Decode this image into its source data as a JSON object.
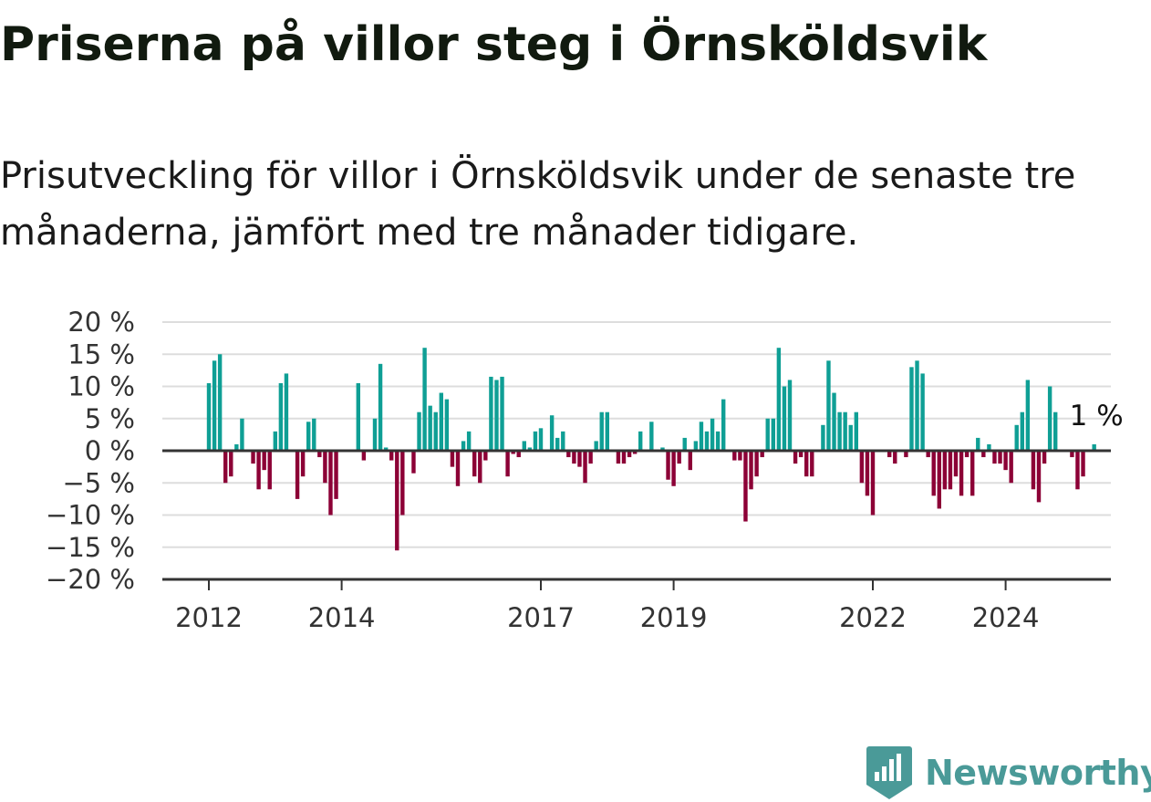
{
  "title": "Priserna på villor steg i Örnsköldsvik",
  "subtitle": "Prisutveckling för villor i Örnsköldsvik under de senaste tre månaderna, jämfört med tre månader tidigare.",
  "brand": {
    "name": "Newsworthy",
    "icon": "newsworthy-logo-icon",
    "color": "#4a9a98"
  },
  "colors": {
    "positive": "#0f9f95",
    "negative": "#8c0036",
    "grid": "#dddddd",
    "axis": "#333333"
  },
  "chart_data": {
    "type": "bar",
    "title": "",
    "xlabel": "",
    "ylabel": "",
    "ylim": [
      -20,
      20
    ],
    "y_ticks": [
      20,
      15,
      10,
      5,
      0,
      -5,
      -10,
      -15,
      -20
    ],
    "y_tick_labels": [
      "20 %",
      "15 %",
      "10 %",
      "5 %",
      "0 %",
      "−5 %",
      "−10 %",
      "−15 %",
      "−20 %"
    ],
    "x_tick_labels": [
      "2012",
      "2014",
      "2017",
      "2019",
      "2022",
      "2024"
    ],
    "x_tick_values": [
      2012,
      2014,
      2017,
      2019,
      2022,
      2024
    ],
    "end_label": "1 %",
    "grid": true,
    "series": [
      {
        "x_start": "2012-01",
        "frequency": "monthly",
        "values": [
          10.5,
          14,
          15,
          -5,
          -4,
          1,
          5,
          0,
          -2,
          -6,
          -3,
          -6,
          3,
          10.5,
          12,
          0,
          -7.5,
          -4,
          4.5,
          5,
          -1,
          -5,
          -10,
          -7.5,
          0,
          0,
          0,
          10.5,
          -1.5,
          0,
          5,
          13.5,
          0.5,
          -1.5,
          -15.5,
          -10,
          0,
          -3.5,
          6,
          16,
          7,
          6,
          9,
          8,
          -2.5,
          -5.5,
          1.5,
          3,
          -4,
          -5,
          -1.5,
          11.5,
          11,
          11.5,
          -4,
          -0.5,
          -1,
          1.5,
          0.5,
          3,
          3.5,
          0,
          5.5,
          2,
          3,
          -1,
          -2,
          -2.5,
          -5,
          -2,
          1.5,
          6,
          6,
          0,
          -2,
          -2,
          -1,
          -0.5,
          3,
          0,
          4.5,
          0,
          0.5,
          -4.5,
          -5.5,
          -2,
          2,
          -3,
          1.5,
          4.5,
          3,
          5,
          3,
          8,
          0,
          -1.5,
          -1.5,
          -11,
          -6,
          -4,
          -1,
          5,
          5,
          16,
          10,
          11,
          -2,
          -1,
          -4,
          -4,
          0,
          4,
          14,
          9,
          6,
          6,
          4,
          6,
          -5,
          -7,
          -10,
          0,
          0,
          -1,
          -2,
          0,
          -1,
          13,
          14,
          12,
          -1,
          -7,
          -9,
          -6,
          -6,
          -4,
          -7,
          -1,
          -7,
          2,
          -1,
          1,
          -2,
          -2,
          -3,
          -5,
          4,
          6,
          11,
          -6,
          -8,
          -2,
          10,
          6,
          0,
          0,
          -1,
          -6,
          -4,
          0,
          1
        ]
      }
    ]
  }
}
